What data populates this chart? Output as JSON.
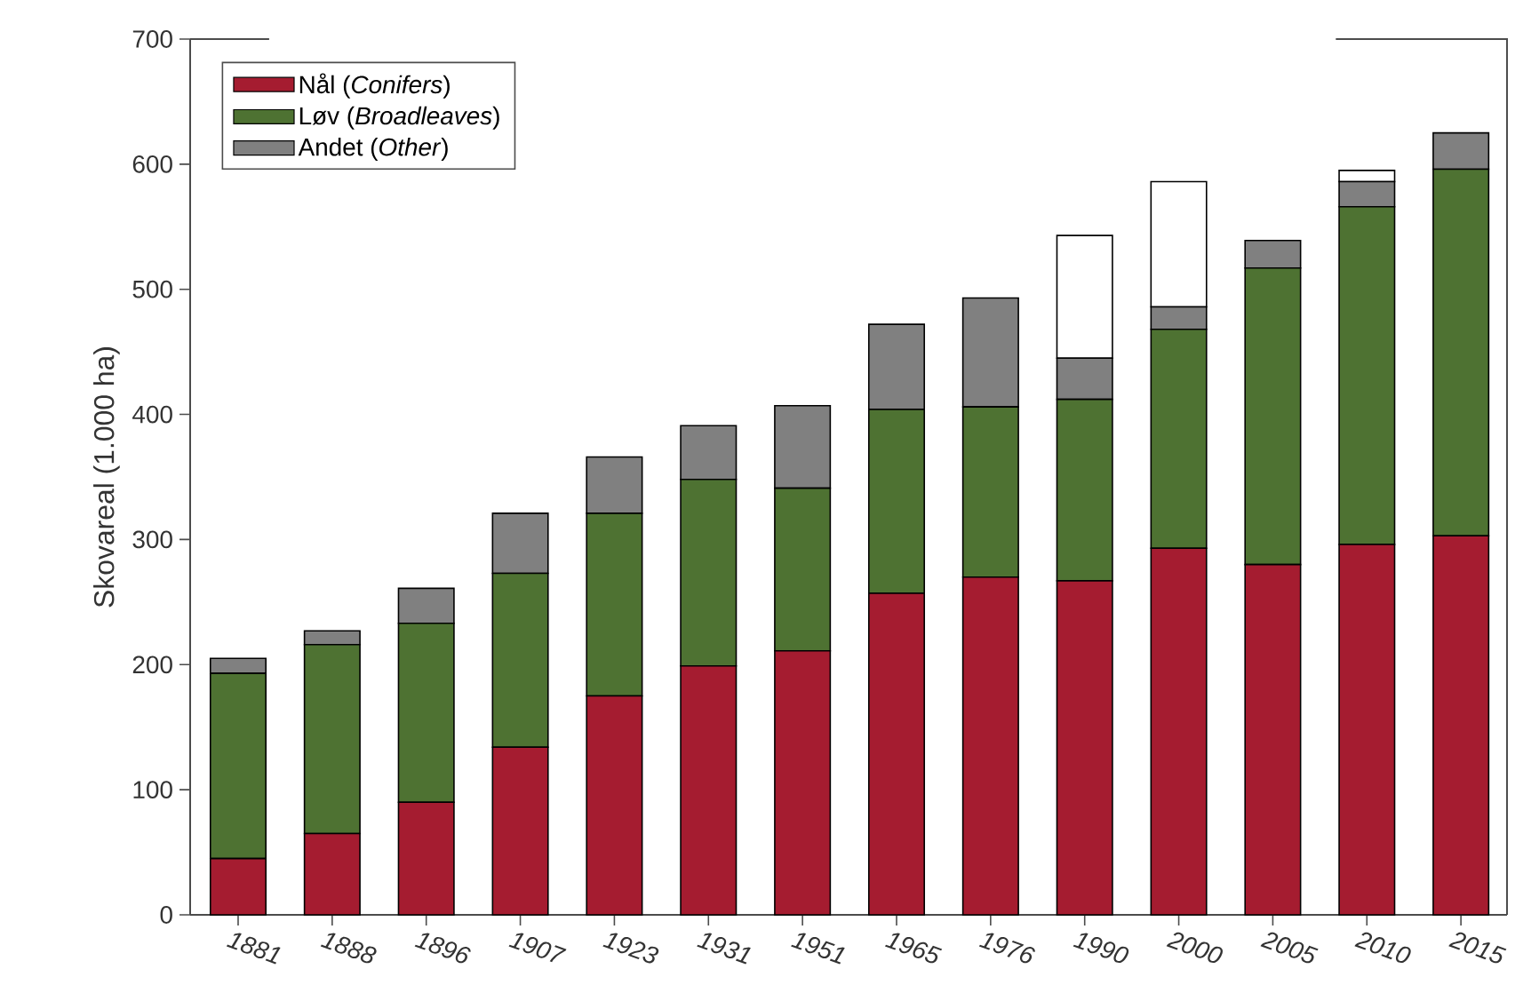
{
  "chart_data": {
    "type": "bar",
    "stacked": true,
    "ylabel": "Skovareal (1.000 ha)",
    "categories": [
      "1881",
      "1888",
      "1896",
      "1907",
      "1923",
      "1931",
      "1951",
      "1965",
      "1976",
      "1990",
      "2000",
      "2005",
      "2010",
      "2015"
    ],
    "series": [
      {
        "name": "Nål (*Conifers*)",
        "color": "#a51c30",
        "values": [
          45,
          65,
          90,
          134,
          175,
          199,
          211,
          257,
          270,
          267,
          293,
          280,
          296,
          303
        ]
      },
      {
        "name": "Løv (*Broadleaves*)",
        "color": "#4e7232",
        "values": [
          148,
          151,
          143,
          139,
          146,
          149,
          130,
          147,
          136,
          145,
          175,
          237,
          270,
          293
        ]
      },
      {
        "name": "Andet (*Other*)",
        "color": "#808080",
        "values": [
          12,
          11,
          28,
          48,
          45,
          43,
          66,
          68,
          87,
          33,
          18,
          22,
          20,
          29
        ]
      },
      {
        "color": "#ffffff",
        "values": [
          null,
          null,
          null,
          null,
          null,
          null,
          null,
          null,
          null,
          98,
          100,
          null,
          9,
          null
        ]
      }
    ],
    "ylim": [
      0,
      700
    ],
    "yticks": [
      0,
      100,
      200,
      300,
      400,
      500,
      600,
      700
    ],
    "legend": "top left",
    "grid": false
  }
}
